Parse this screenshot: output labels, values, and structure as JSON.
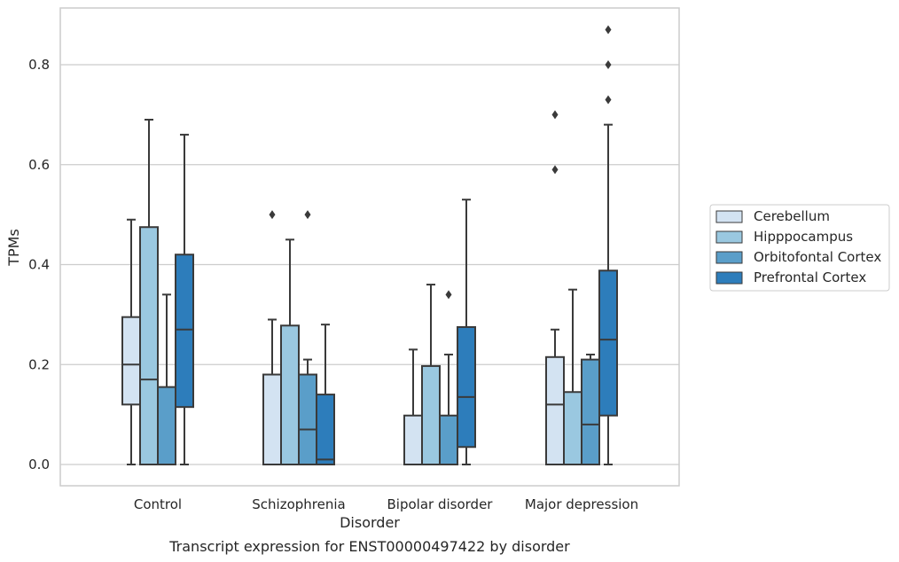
{
  "caption": "Transcript expression for ENST00000497422 by disorder",
  "chart_data": {
    "type": "box",
    "title": "",
    "xlabel": "Disorder",
    "ylabel": "TPMs",
    "ylim": [
      -0.04,
      0.92
    ],
    "yticks": [
      0.0,
      0.2,
      0.4,
      0.6,
      0.8
    ],
    "ytick_labels": [
      "0.0",
      "0.2",
      "0.4",
      "0.6",
      "0.8"
    ],
    "grid": "horizontal",
    "legend_position": "right",
    "categories": [
      "Control",
      "Schizophrenia",
      "Bipolar disorder",
      "Major depression"
    ],
    "series": [
      {
        "name": "Cerebellum",
        "color": "#d3e3f2",
        "boxes": [
          {
            "q1": 0.12,
            "median": 0.2,
            "q3": 0.295,
            "whisker_low": 0.0,
            "whisker_high": 0.49,
            "outliers": []
          },
          {
            "q1": 0.0,
            "median": 0.0,
            "q3": 0.18,
            "whisker_low": 0.0,
            "whisker_high": 0.29,
            "outliers": [
              0.5
            ]
          },
          {
            "q1": 0.0,
            "median": 0.0,
            "q3": 0.098,
            "whisker_low": 0.0,
            "whisker_high": 0.23,
            "outliers": []
          },
          {
            "q1": 0.0,
            "median": 0.12,
            "q3": 0.215,
            "whisker_low": 0.0,
            "whisker_high": 0.27,
            "outliers": [
              0.59,
              0.7
            ]
          }
        ]
      },
      {
        "name": "Hipppocampus",
        "color": "#9ac8e0",
        "boxes": [
          {
            "q1": 0.0,
            "median": 0.17,
            "q3": 0.475,
            "whisker_low": 0.0,
            "whisker_high": 0.69,
            "outliers": []
          },
          {
            "q1": 0.0,
            "median": 0.0,
            "q3": 0.278,
            "whisker_low": 0.0,
            "whisker_high": 0.45,
            "outliers": []
          },
          {
            "q1": 0.0,
            "median": 0.0,
            "q3": 0.197,
            "whisker_low": 0.0,
            "whisker_high": 0.36,
            "outliers": []
          },
          {
            "q1": 0.0,
            "median": 0.0,
            "q3": 0.145,
            "whisker_low": 0.0,
            "whisker_high": 0.35,
            "outliers": []
          }
        ]
      },
      {
        "name": "Orbitofontal Cortex",
        "color": "#5a9ec9",
        "boxes": [
          {
            "q1": 0.0,
            "median": 0.0,
            "q3": 0.155,
            "whisker_low": 0.0,
            "whisker_high": 0.34,
            "outliers": []
          },
          {
            "q1": 0.0,
            "median": 0.07,
            "q3": 0.18,
            "whisker_low": 0.0,
            "whisker_high": 0.21,
            "outliers": [
              0.5
            ]
          },
          {
            "q1": 0.0,
            "median": 0.0,
            "q3": 0.098,
            "whisker_low": 0.0,
            "whisker_high": 0.22,
            "outliers": [
              0.34
            ]
          },
          {
            "q1": 0.0,
            "median": 0.08,
            "q3": 0.21,
            "whisker_low": 0.0,
            "whisker_high": 0.22,
            "outliers": []
          }
        ]
      },
      {
        "name": "Prefrontal Cortex",
        "color": "#2d7dbb",
        "boxes": [
          {
            "q1": 0.115,
            "median": 0.27,
            "q3": 0.42,
            "whisker_low": 0.0,
            "whisker_high": 0.66,
            "outliers": []
          },
          {
            "q1": 0.0,
            "median": 0.01,
            "q3": 0.14,
            "whisker_low": 0.0,
            "whisker_high": 0.28,
            "outliers": []
          },
          {
            "q1": 0.035,
            "median": 0.135,
            "q3": 0.275,
            "whisker_low": 0.0,
            "whisker_high": 0.53,
            "outliers": []
          },
          {
            "q1": 0.098,
            "median": 0.25,
            "q3": 0.388,
            "whisker_low": 0.0,
            "whisker_high": 0.68,
            "outliers": [
              0.73,
              0.8,
              0.87
            ]
          }
        ]
      }
    ]
  }
}
